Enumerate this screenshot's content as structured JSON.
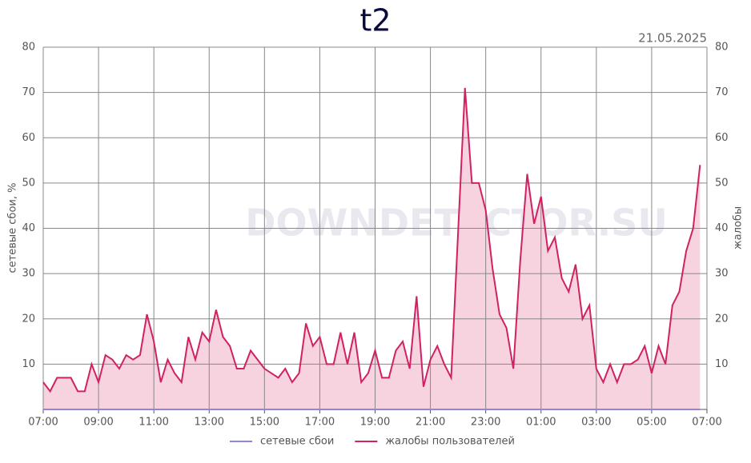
{
  "chart_data": {
    "type": "line",
    "title": "t2",
    "subtitle": "21.05.2025",
    "watermark": "DOWNDETECTOR.SU",
    "ylabel": "сетевые сбои, %",
    "y2label": "жалобы",
    "x": [
      0,
      0.25,
      0.5,
      0.75,
      1,
      1.25,
      1.5,
      1.75,
      2,
      2.25,
      2.5,
      2.75,
      3,
      3.25,
      3.5,
      3.75,
      4,
      4.25,
      4.5,
      4.75,
      5,
      5.25,
      5.5,
      5.75,
      6,
      6.25,
      6.5,
      6.75,
      7,
      7.25,
      7.5,
      7.75,
      8,
      8.25,
      8.5,
      8.75,
      9,
      9.25,
      9.5,
      9.75,
      10,
      10.25,
      10.5,
      10.75,
      11,
      11.25,
      11.5,
      11.75,
      12,
      12.25,
      12.5,
      12.75,
      13,
      13.25,
      13.5,
      13.75,
      14,
      14.25,
      14.5,
      14.75,
      15,
      15.25,
      15.5,
      15.75,
      16,
      16.25,
      16.5,
      16.75,
      17,
      17.25,
      17.5,
      17.75,
      18,
      18.25,
      18.5,
      18.75,
      19,
      19.25,
      19.5,
      19.75,
      20,
      20.25,
      20.5,
      20.75,
      21,
      21.25,
      21.5,
      21.75,
      22,
      22.25,
      22.5,
      22.75,
      23,
      23.25,
      23.5,
      23.75
    ],
    "xlim": [
      0,
      24
    ],
    "xticks": [
      {
        "value": 0,
        "label": "07:00"
      },
      {
        "value": 2,
        "label": "09:00"
      },
      {
        "value": 4,
        "label": "11:00"
      },
      {
        "value": 6,
        "label": "13:00"
      },
      {
        "value": 8,
        "label": "15:00"
      },
      {
        "value": 10,
        "label": "17:00"
      },
      {
        "value": 12,
        "label": "19:00"
      },
      {
        "value": 14,
        "label": "21:00"
      },
      {
        "value": 16,
        "label": "23:00"
      },
      {
        "value": 18,
        "label": "01:00"
      },
      {
        "value": 20,
        "label": "03:00"
      },
      {
        "value": 22,
        "label": "05:00"
      },
      {
        "value": 24,
        "label": "07:00"
      }
    ],
    "ylim": [
      0,
      80
    ],
    "yticks": [
      10,
      20,
      30,
      40,
      50,
      60,
      70,
      80
    ],
    "y2lim": [
      0,
      80
    ],
    "y2ticks": [
      10,
      20,
      30,
      40,
      50,
      60,
      70,
      80
    ],
    "grid": true,
    "legend": "bottom",
    "series": [
      {
        "name": "сетевые сбои",
        "color": "#8c86e0",
        "values": [
          0,
          0,
          0,
          0,
          0,
          0,
          0,
          0,
          0,
          0,
          0,
          0,
          0,
          0,
          0,
          0,
          0,
          0,
          0,
          0,
          0,
          0,
          0,
          0,
          0,
          0,
          0,
          0,
          0,
          0,
          0,
          0,
          0,
          0,
          0,
          0,
          0,
          0,
          0,
          0,
          0,
          0,
          0,
          0,
          0,
          0,
          0,
          0,
          0,
          0,
          0,
          0,
          0,
          0,
          0,
          0,
          0,
          0,
          0,
          0,
          0,
          0,
          0,
          0,
          0,
          0,
          0,
          0,
          0,
          0,
          0,
          0,
          0,
          0,
          0,
          0,
          0,
          0,
          0,
          0,
          0,
          0,
          0,
          0,
          0,
          0,
          0,
          0,
          0,
          0,
          0,
          0,
          0,
          0,
          0,
          0
        ]
      },
      {
        "name": "жалобы пользователей",
        "color": "#d12163",
        "fill": "#f7d3e0",
        "axis": "y2",
        "values": [
          6,
          4,
          7,
          7,
          7,
          4,
          4,
          10,
          6,
          12,
          11,
          9,
          12,
          11,
          12,
          21,
          15,
          6,
          11,
          8,
          6,
          16,
          11,
          17,
          15,
          22,
          16,
          14,
          9,
          9,
          13,
          11,
          9,
          8,
          7,
          9,
          6,
          8,
          19,
          14,
          16,
          10,
          10,
          17,
          10,
          17,
          6,
          8,
          13,
          7,
          7,
          13,
          15,
          9,
          25,
          5,
          11,
          14,
          10,
          7,
          39,
          71,
          50,
          50,
          44,
          31,
          21,
          18,
          9,
          33,
          52,
          41,
          47,
          35,
          38,
          29,
          26,
          32,
          20,
          23,
          9,
          6,
          10,
          6,
          10,
          10,
          11,
          14,
          8,
          14,
          10,
          23,
          26,
          35,
          40,
          54
        ]
      }
    ]
  }
}
